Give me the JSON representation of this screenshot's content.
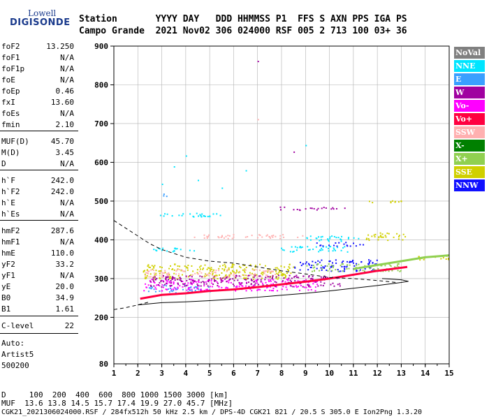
{
  "logo": {
    "top": "Lowell",
    "main": "DIGISONDE"
  },
  "header": {
    "row1": "Station       YYYY DAY   DDD HHMMSS P1  FFS S AXN PPS IGA PS",
    "row2": "Campo Grande  2021 Nov02 306 024000 RSF 005 2 713 100 03+ 36"
  },
  "params": {
    "group1": [
      {
        "k": "foF2",
        "v": "13.250"
      },
      {
        "k": "foF1",
        "v": "N/A"
      },
      {
        "k": "foF1p",
        "v": "N/A"
      },
      {
        "k": "foE",
        "v": "N/A"
      },
      {
        "k": "foEp",
        "v": "0.46"
      },
      {
        "k": "fxI",
        "v": "13.60"
      },
      {
        "k": "foEs",
        "v": "N/A"
      },
      {
        "k": "fmin",
        "v": "2.10"
      }
    ],
    "group2": [
      {
        "k": "MUF(D)",
        "v": "45.70"
      },
      {
        "k": "M(D)",
        "v": "3.45"
      },
      {
        "k": "D",
        "v": "N/A"
      }
    ],
    "group3": [
      {
        "k": "h`F",
        "v": "242.0"
      },
      {
        "k": "h`F2",
        "v": "242.0"
      },
      {
        "k": "h`E",
        "v": "N/A"
      },
      {
        "k": "h`Es",
        "v": "N/A"
      }
    ],
    "group4": [
      {
        "k": "hmF2",
        "v": "287.6"
      },
      {
        "k": "hmF1",
        "v": "N/A"
      },
      {
        "k": "hmE",
        "v": "110.0"
      },
      {
        "k": "yF2",
        "v": "33.2"
      },
      {
        "k": "yF1",
        "v": "N/A"
      },
      {
        "k": "yE",
        "v": "20.0"
      },
      {
        "k": "B0",
        "v": "34.9"
      },
      {
        "k": "B1",
        "v": "1.61"
      }
    ],
    "group5": [
      {
        "k": "C-level",
        "v": "22"
      }
    ]
  },
  "auto": {
    "line1": "Auto:",
    "line2": "Artist5",
    "line3": "500200"
  },
  "footer": {
    "dist": "D     100  200  400  600  800 1000 1500 3000 [km]",
    "muf": "MUF  13.6 13.8 14.5 15.7 17.4 19.9 27.0 45.7 [MHz]",
    "file": "CGK21_2021306024000.RSF / 284fx512h 50 kHz 2.5 km / DPS-4D CGK21 821 / 20.5 S 305.0 E Ion2Png 1.3.20"
  },
  "legend": [
    {
      "label": "NoVal",
      "color": "#808080"
    },
    {
      "label": "NNE",
      "color": "#00e5ff"
    },
    {
      "label": "E",
      "color": "#3a9fff"
    },
    {
      "label": "W",
      "color": "#a000a0"
    },
    {
      "label": "Vo-",
      "color": "#ff00ff"
    },
    {
      "label": "Vo+",
      "color": "#ff0040"
    },
    {
      "label": "SSW",
      "color": "#ffb0b0"
    },
    {
      "label": "X-",
      "color": "#008000"
    },
    {
      "label": "X+",
      "color": "#90d050"
    },
    {
      "label": "SSE",
      "color": "#d0d000"
    },
    {
      "label": "NNW",
      "color": "#1010ff"
    }
  ],
  "chart_data": {
    "type": "scatter",
    "xlabel": "",
    "ylabel": "",
    "xlim": [
      1,
      15
    ],
    "ylim": [
      80,
      900
    ],
    "x_ticks": [
      1,
      2,
      3,
      4,
      5,
      6,
      7,
      8,
      9,
      10,
      11,
      12,
      13,
      14,
      15
    ],
    "y_ticks": [
      200,
      300,
      400,
      500,
      600,
      700,
      800,
      900
    ],
    "y_bottom_label": 80,
    "grid": true,
    "bands": [
      {
        "name": "NNE",
        "x": [
          2.6,
          5.5
        ],
        "y": [
          460,
          470
        ],
        "color": "#00e5ff"
      },
      {
        "name": "E",
        "x": [
          2.9,
          3.3
        ],
        "y": [
          512,
          520
        ],
        "color": "#3a9fff"
      },
      {
        "name": "NNE",
        "x": [
          9.0,
          11.2
        ],
        "y": [
          398,
          412
        ],
        "color": "#00e5ff"
      },
      {
        "name": "SSW",
        "x": [
          4.3,
          9.0
        ],
        "y": [
          405,
          415
        ],
        "color": "#ffb0b0"
      },
      {
        "name": "NNE",
        "x": [
          7.9,
          10.8
        ],
        "y": [
          370,
          385
        ],
        "color": "#00e5ff"
      },
      {
        "name": "W",
        "x": [
          7.8,
          10.7
        ],
        "y": [
          478,
          486
        ],
        "color": "#a000a0"
      },
      {
        "name": "SSE",
        "x": [
          11.6,
          13.0
        ],
        "y": [
          497,
          503
        ],
        "color": "#d0d000"
      },
      {
        "name": "NNW",
        "x": [
          9.4,
          11.4
        ],
        "y": [
          385,
          395
        ],
        "color": "#1010ff"
      },
      {
        "name": "SSE",
        "x": [
          11.5,
          13.2
        ],
        "y": [
          400,
          420
        ],
        "color": "#d0d000"
      },
      {
        "name": "SSE",
        "x": [
          13.5,
          15.0
        ],
        "y": [
          350,
          360
        ],
        "color": "#d0d000"
      },
      {
        "name": "NNW",
        "x": [
          8.5,
          12.0
        ],
        "y": [
          320,
          350
        ],
        "color": "#1010ff"
      },
      {
        "name": "SSE",
        "x": [
          2.2,
          8.5
        ],
        "y": [
          300,
          340
        ],
        "color": "#d0d000"
      },
      {
        "name": "SSW",
        "x": [
          2.2,
          7.8
        ],
        "y": [
          305,
          325
        ],
        "color": "#ffb0b0"
      },
      {
        "name": "E",
        "x": [
          2.2,
          5.0
        ],
        "y": [
          265,
          285
        ],
        "color": "#3a9fff"
      },
      {
        "name": "Vo-",
        "x": [
          2.2,
          9.5
        ],
        "y": [
          270,
          300
        ],
        "color": "#ff00ff"
      },
      {
        "name": "W",
        "x": [
          2.5,
          10.5
        ],
        "y": [
          280,
          310
        ],
        "color": "#a000a0"
      },
      {
        "name": "X+",
        "x": [
          9.0,
          13.0
        ],
        "y": [
          320,
          340
        ],
        "color": "#90d050"
      },
      {
        "name": "NNE",
        "x": [
          2.5,
          4.5
        ],
        "y": [
          370,
          380
        ],
        "color": "#00e5ff"
      }
    ],
    "trace_Vo_plus": {
      "x": [
        2.1,
        3,
        4,
        5,
        6,
        7,
        8,
        9,
        10,
        11,
        12,
        13.25
      ],
      "y": [
        248,
        258,
        262,
        268,
        272,
        278,
        285,
        292,
        300,
        310,
        320,
        330
      ]
    },
    "trace_X_plus_upper": {
      "x": [
        11,
        12,
        13,
        14,
        15
      ],
      "y": [
        325,
        335,
        345,
        355,
        360
      ]
    },
    "profile_solid": {
      "x": [
        2.0,
        3,
        4,
        5,
        6,
        7,
        8,
        9,
        10,
        11,
        12,
        13,
        13.3,
        13.0,
        12.2
      ],
      "y": [
        232,
        238,
        240,
        243,
        247,
        252,
        257,
        262,
        268,
        275,
        282,
        290,
        293,
        297,
        300
      ]
    },
    "profile_dashed_lower": {
      "x": [
        1.0,
        1.5,
        2.0,
        2.5
      ],
      "y": [
        220,
        225,
        232,
        240
      ]
    },
    "profile_dashed_upper": {
      "x": [
        1.0,
        1.5,
        2.0,
        2.5,
        3,
        4,
        5,
        6,
        7,
        8,
        9,
        10,
        11,
        12,
        12.8
      ],
      "y": [
        450,
        430,
        410,
        390,
        375,
        355,
        345,
        340,
        330,
        320,
        312,
        303,
        300,
        295,
        290
      ]
    },
    "isolated_points": [
      {
        "x": 7.0,
        "y": 862,
        "color": "#a000a0"
      },
      {
        "x": 7.0,
        "y": 712,
        "color": "#ffb0b0"
      },
      {
        "x": 8.5,
        "y": 628,
        "color": "#a000a0"
      },
      {
        "x": 3.5,
        "y": 590,
        "color": "#00e5ff"
      },
      {
        "x": 4.5,
        "y": 555,
        "color": "#00e5ff"
      },
      {
        "x": 5.5,
        "y": 535,
        "color": "#00e5ff"
      },
      {
        "x": 6.5,
        "y": 580,
        "color": "#00e5ff"
      },
      {
        "x": 9.0,
        "y": 645,
        "color": "#00e5ff"
      },
      {
        "x": 3.0,
        "y": 545,
        "color": "#00e5ff"
      },
      {
        "x": 4.0,
        "y": 618,
        "color": "#00e5ff"
      }
    ]
  }
}
